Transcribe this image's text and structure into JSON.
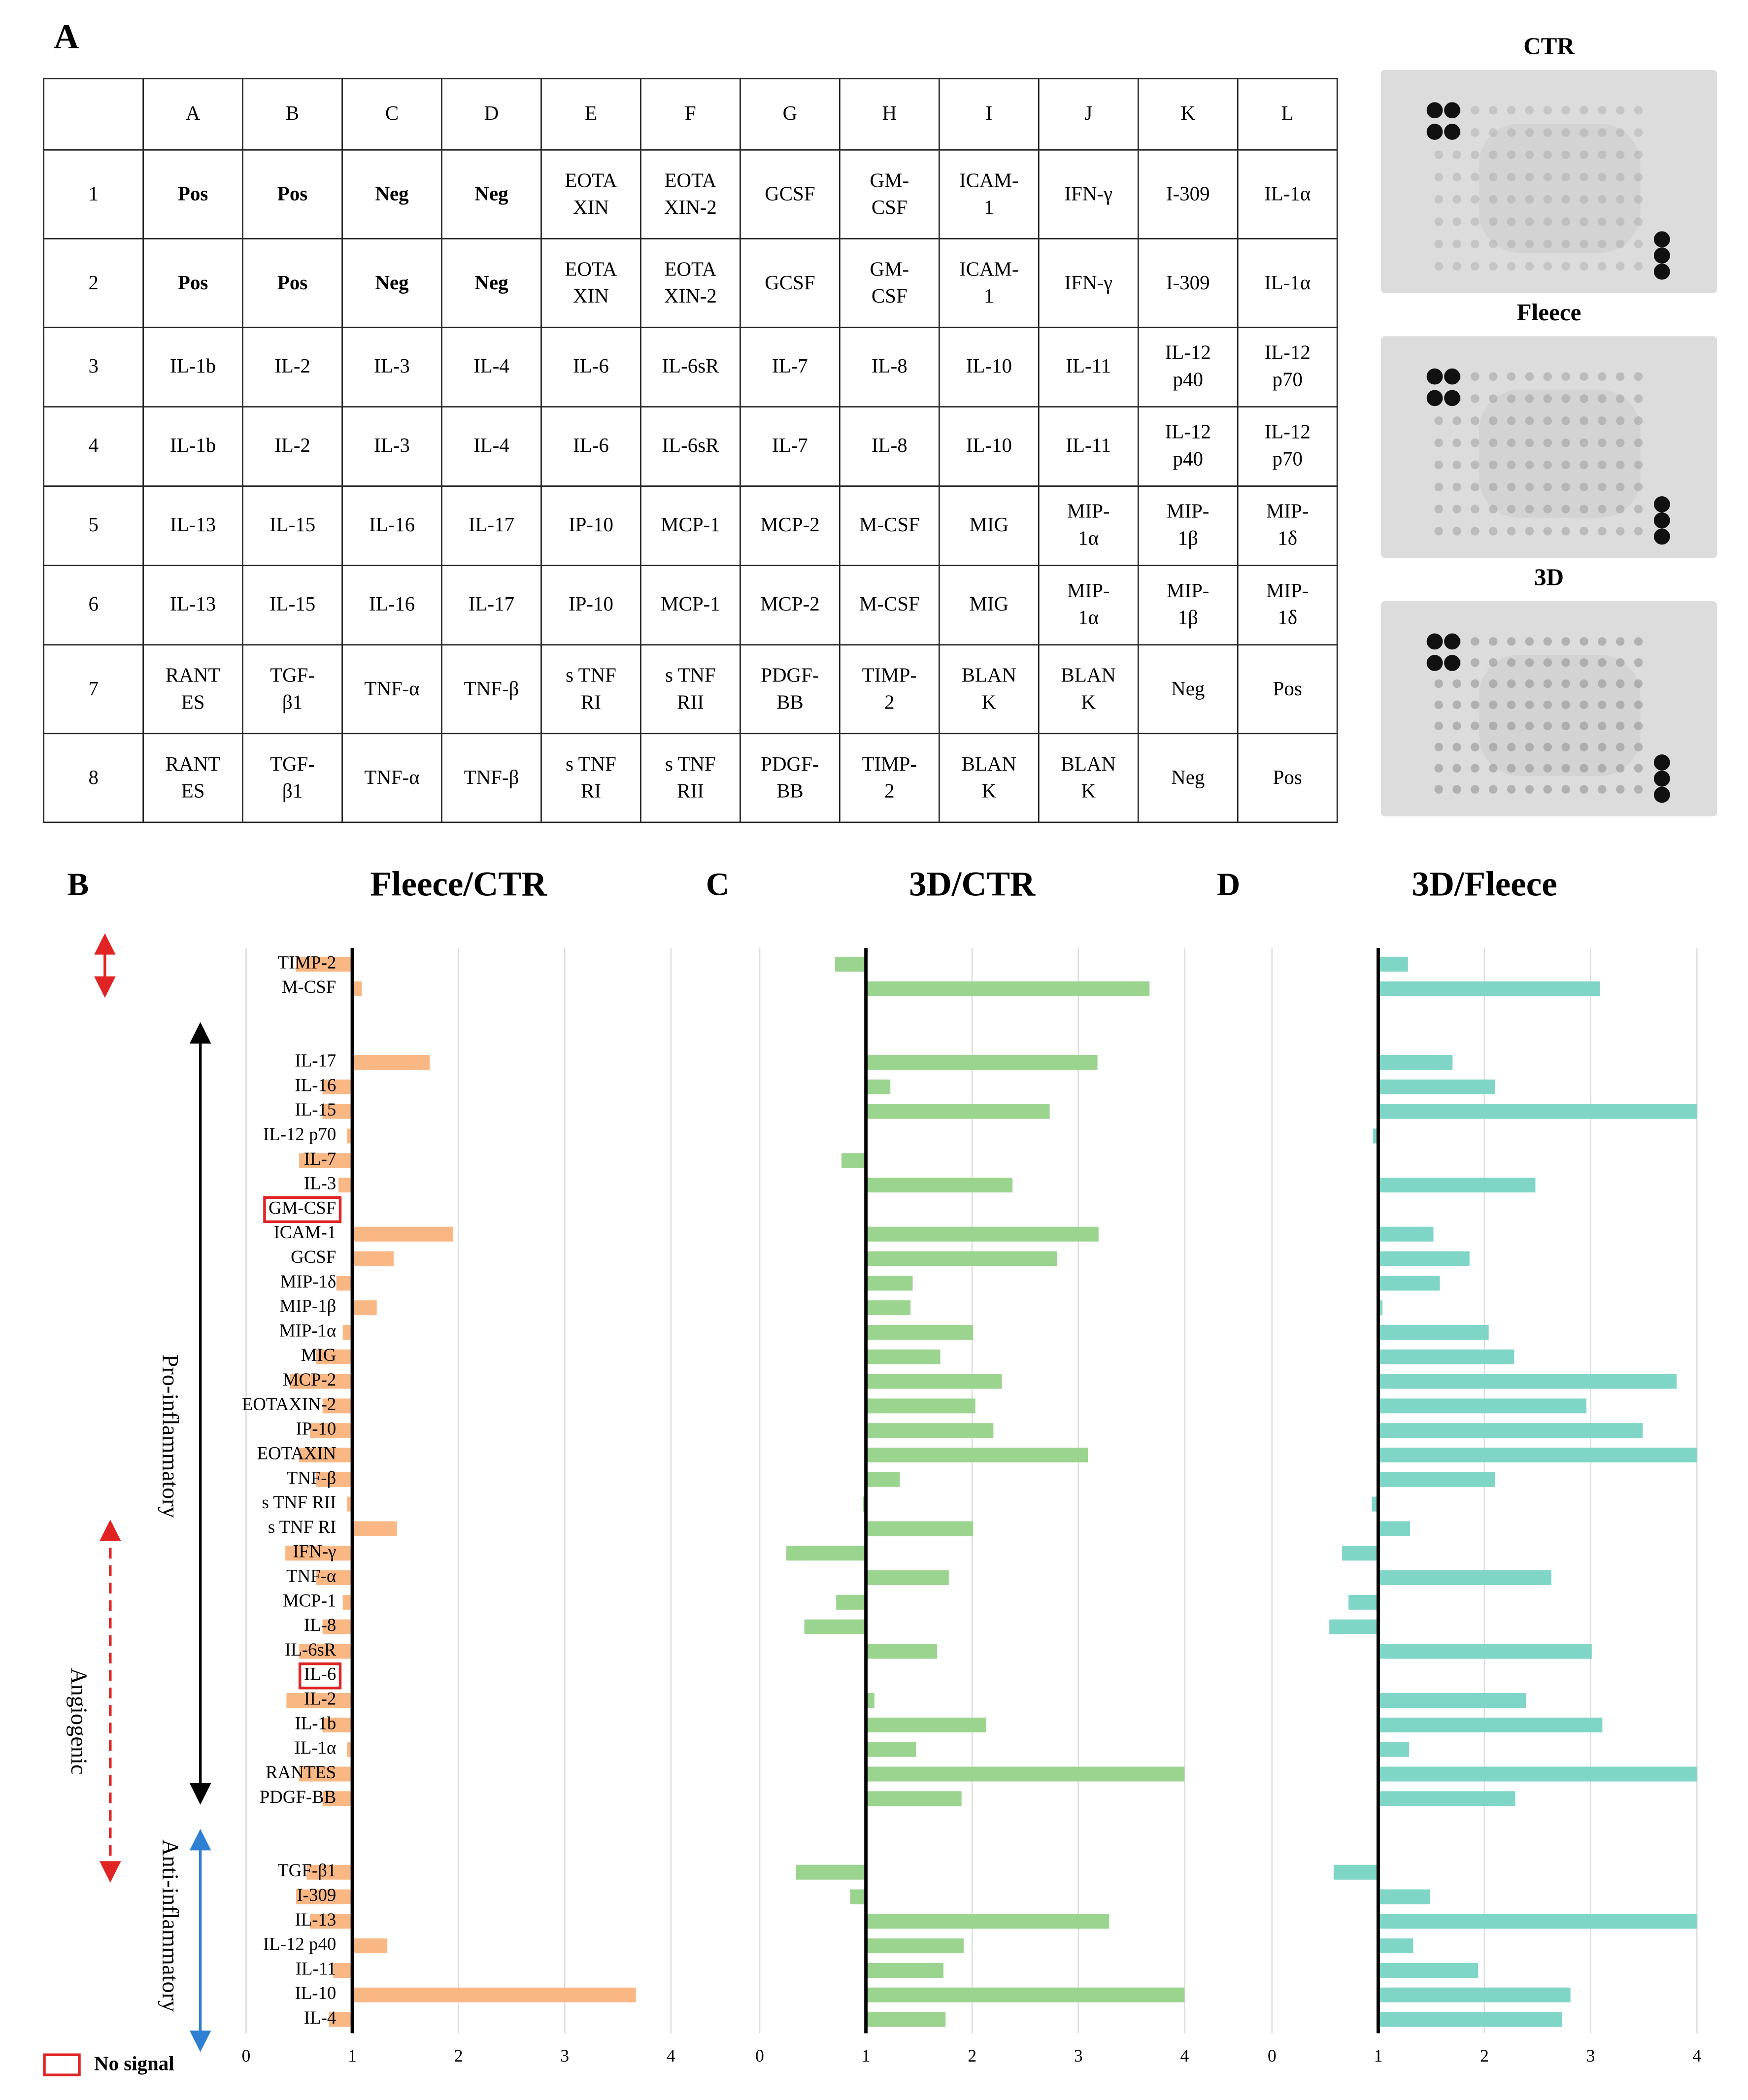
{
  "panel_a": {
    "label": "A",
    "table": {
      "columns": [
        "A",
        "B",
        "C",
        "D",
        "E",
        "F",
        "G",
        "H",
        "I",
        "J",
        "K",
        "L"
      ],
      "rows": [
        {
          "label": "1",
          "cells": [
            "Pos",
            "Pos",
            "Neg",
            "Neg",
            "EOTA\nXIN",
            "EOTA\nXIN-2",
            "GCSF",
            "GM-\nCSF",
            "ICAM-\n1",
            "IFN-γ",
            "I-309",
            "IL-1α"
          ]
        },
        {
          "label": "2",
          "cells": [
            "Pos",
            "Pos",
            "Neg",
            "Neg",
            "EOTA\nXIN",
            "EOTA\nXIN-2",
            "GCSF",
            "GM-\nCSF",
            "ICAM-\n1",
            "IFN-γ",
            "I-309",
            "IL-1α"
          ]
        },
        {
          "label": "3",
          "cells": [
            "IL-1b",
            "IL-2",
            "IL-3",
            "IL-4",
            "IL-6",
            "IL-6sR",
            "IL-7",
            "IL-8",
            "IL-10",
            "IL-11",
            "IL-12\np40",
            "IL-12\np70"
          ]
        },
        {
          "label": "4",
          "cells": [
            "IL-1b",
            "IL-2",
            "IL-3",
            "IL-4",
            "IL-6",
            "IL-6sR",
            "IL-7",
            "IL-8",
            "IL-10",
            "IL-11",
            "IL-12\np40",
            "IL-12\np70"
          ]
        },
        {
          "label": "5",
          "cells": [
            "IL-13",
            "IL-15",
            "IL-16",
            "IL-17",
            "IP-10",
            "MCP-1",
            "MCP-2",
            "M-CSF",
            "MIG",
            "MIP-\n1α",
            "MIP-\n1β",
            "MIP-\n1δ"
          ]
        },
        {
          "label": "6",
          "cells": [
            "IL-13",
            "IL-15",
            "IL-16",
            "IL-17",
            "IP-10",
            "MCP-1",
            "MCP-2",
            "M-CSF",
            "MIG",
            "MIP-\n1α",
            "MIP-\n1β",
            "MIP-\n1δ"
          ]
        },
        {
          "label": "7",
          "cells": [
            "RANT\nES",
            "TGF-\nβ1",
            "TNF-α",
            "TNF-β",
            "s TNF\nRI",
            "s TNF\nRII",
            "PDGF-\nBB",
            "TIMP-\n2",
            "BLAN\nK",
            "BLAN\nK",
            "Neg",
            "Pos"
          ]
        },
        {
          "label": "8",
          "cells": [
            "RANT\nES",
            "TGF-\nβ1",
            "TNF-α",
            "TNF-β",
            "s TNF\nRI",
            "s TNF\nRII",
            "PDGF-\nBB",
            "TIMP-\n2",
            "BLAN\nK",
            "BLAN\nK",
            "Neg",
            "Pos"
          ]
        }
      ]
    },
    "blots": [
      "CTR",
      "Fleece",
      "3D"
    ]
  },
  "legend_note": "No signal",
  "chart_data": [
    {
      "type": "bar",
      "panel": "B",
      "title": "Fleece/CTR",
      "color": "#f9b784",
      "categories": [
        "TIMP-2",
        "M-CSF",
        null,
        null,
        "IL-17",
        "IL-16",
        "IL-15",
        "IL-12 p70",
        "IL-7",
        "IL-3",
        "GM-CSF",
        "ICAM-1",
        "GCSF",
        "MIP-1δ",
        "MIP-1β",
        "MIP-1α",
        "MIG",
        "MCP-2",
        "EOTAXIN-2",
        "IP-10",
        "EOTAXIN",
        "TNF-β",
        "s TNF RII",
        "s TNF RI",
        "IFN-γ",
        "TNF-α",
        "MCP-1",
        "IL-8",
        "IL-6sR",
        "IL-6",
        "IL-2",
        "IL-1b",
        "IL-1α",
        "RANTES",
        "PDGF-BB",
        null,
        null,
        "TGF-β1",
        "I-309",
        "IL-13",
        "IL-12 p40",
        "IL-11",
        "IL-10",
        "IL-4"
      ],
      "values": [
        0.47,
        1.09,
        null,
        null,
        1.73,
        0.72,
        0.72,
        0.95,
        0.5,
        0.87,
        null,
        1.95,
        1.39,
        0.85,
        1.23,
        0.91,
        0.66,
        0.41,
        0.72,
        0.6,
        0.5,
        0.66,
        0.95,
        1.42,
        0.37,
        0.66,
        0.91,
        0.72,
        0.5,
        null,
        0.38,
        0.72,
        0.95,
        0.5,
        0.72,
        null,
        null,
        0.57,
        0.47,
        0.6,
        1.33,
        0.82,
        3.67,
        0.78
      ],
      "groups": [
        "Pro-inflammatory",
        "Angiogenic",
        "Anti-inflammatory"
      ],
      "xlim": [
        0,
        4
      ],
      "xticks": [
        0,
        1,
        2,
        3,
        4
      ],
      "baseline": 1,
      "grid": true
    },
    {
      "type": "bar",
      "panel": "C",
      "title": "3D/CTR",
      "color": "#9bd48e",
      "values": [
        0.71,
        3.67,
        null,
        null,
        3.18,
        1.23,
        2.73,
        1,
        0.77,
        2.38,
        null,
        3.19,
        2.8,
        1.44,
        1.42,
        2.01,
        1.7,
        2.28,
        2.03,
        2.2,
        3.09,
        1.32,
        0.97,
        2.01,
        0.25,
        1.78,
        0.72,
        0.42,
        1.67,
        null,
        1.08,
        2.13,
        1.47,
        4,
        1.9,
        null,
        null,
        0.34,
        0.85,
        3.29,
        1.92,
        1.73,
        4,
        1.75
      ],
      "xlim": [
        0,
        4
      ],
      "xticks": [
        0,
        1,
        2,
        3,
        4
      ],
      "baseline": 1,
      "grid": true
    },
    {
      "type": "bar",
      "panel": "D",
      "title": "3D/Fleece",
      "color": "#7fd6c6",
      "values": [
        1.28,
        3.09,
        null,
        null,
        1.7,
        2.1,
        4,
        0.95,
        1,
        2.48,
        null,
        1.52,
        1.86,
        1.58,
        1.04,
        2.04,
        2.28,
        3.81,
        2.96,
        3.49,
        4,
        2.1,
        0.94,
        1.3,
        0.66,
        2.63,
        0.72,
        0.54,
        3.01,
        null,
        2.39,
        3.11,
        1.29,
        4,
        2.29,
        null,
        null,
        0.58,
        1.49,
        4,
        1.33,
        1.94,
        2.81,
        2.73
      ],
      "xlim": [
        0,
        4
      ],
      "xticks": [
        0,
        1,
        2,
        3,
        4
      ],
      "baseline": 1,
      "grid": true
    }
  ]
}
